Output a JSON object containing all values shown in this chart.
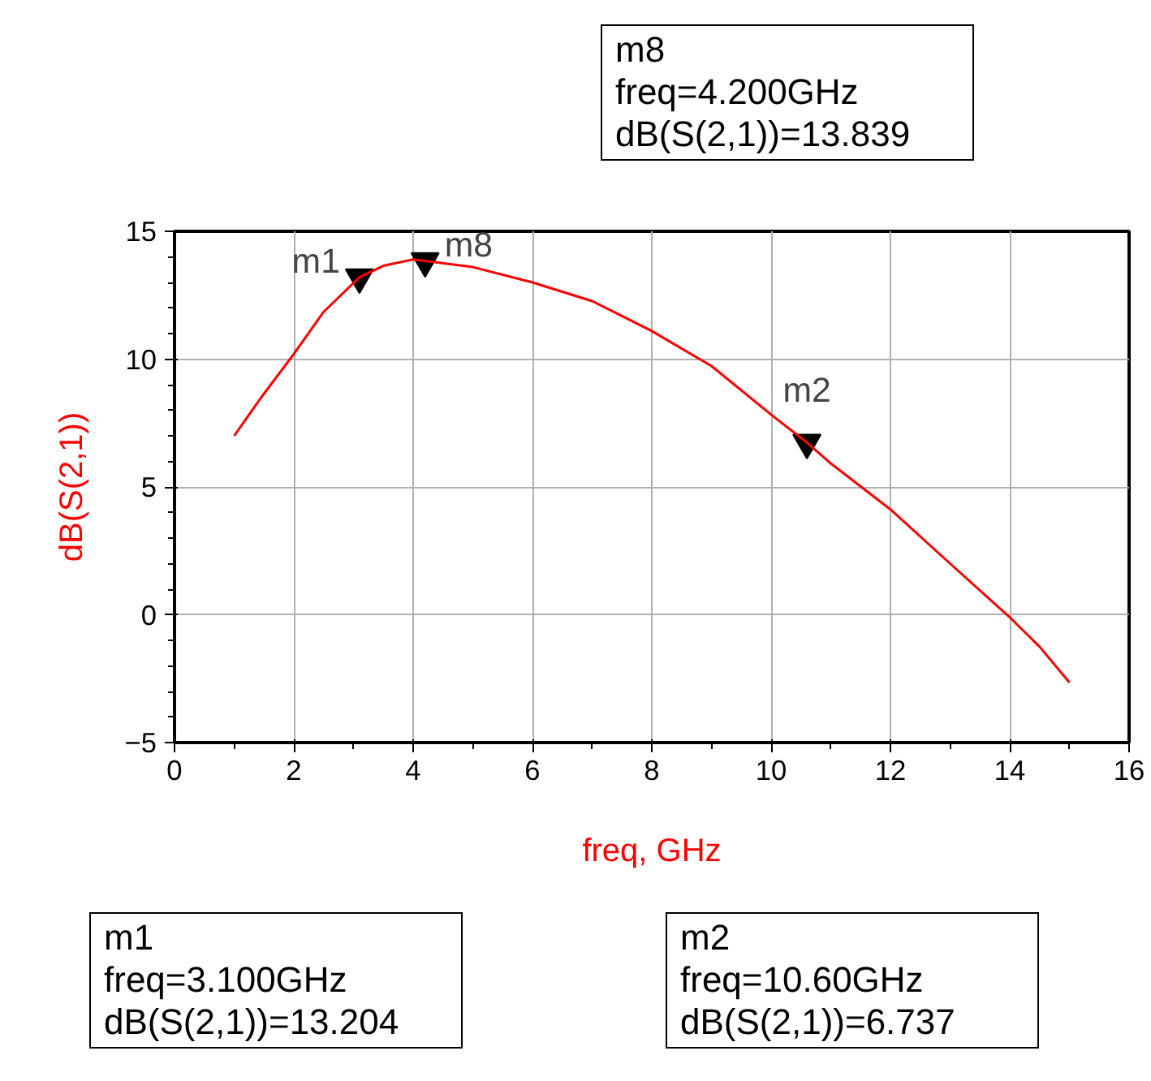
{
  "chart_data": {
    "type": "line",
    "xlabel": "freq, GHz",
    "ylabel": "dB(S(2,1))",
    "xlim": [
      0,
      16
    ],
    "ylim": [
      -5,
      15
    ],
    "xticks": [
      0,
      2,
      4,
      6,
      8,
      10,
      12,
      14,
      16
    ],
    "yticks": [
      -5,
      0,
      5,
      10,
      15
    ],
    "grid": true,
    "line_style": "solid",
    "series": [
      {
        "color": "#ff0000",
        "x": [
          1,
          1.44,
          2,
          2.5,
          3.1,
          3.5,
          4,
          4.2,
          5,
          6,
          7,
          8,
          9,
          10,
          10.6,
          11,
          12,
          13,
          14,
          14.5,
          15
        ],
        "values": [
          7.0,
          8.46,
          10.2,
          11.85,
          13.204,
          13.65,
          13.9,
          13.839,
          13.6,
          13.0,
          12.27,
          11.1,
          9.73,
          7.83,
          6.737,
          5.92,
          4.12,
          2.0,
          -0.1,
          -1.25,
          -2.65
        ]
      },
      {
        "type": "scatter",
        "marker": "triangle",
        "color": "#000000",
        "x": [
          3.1,
          4.2,
          10.6
        ],
        "values": [
          13.204,
          13.839,
          6.737
        ]
      }
    ],
    "annotations": [
      {
        "text": "m1",
        "x": 3.1,
        "y": 13.204
      },
      {
        "text": "m8",
        "x": 4.2,
        "y": 13.839
      },
      {
        "text": "m2",
        "x": 10.6,
        "y": 6.737
      },
      "m8\nfreq=4.200GHz\ndB(S(2,1))=13.839",
      "m1\nfreq=3.100GHz\ndB(S(2,1))=13.204",
      "m2\nfreq=10.60GHz\ndB(S(2,1))=6.737"
    ]
  }
}
